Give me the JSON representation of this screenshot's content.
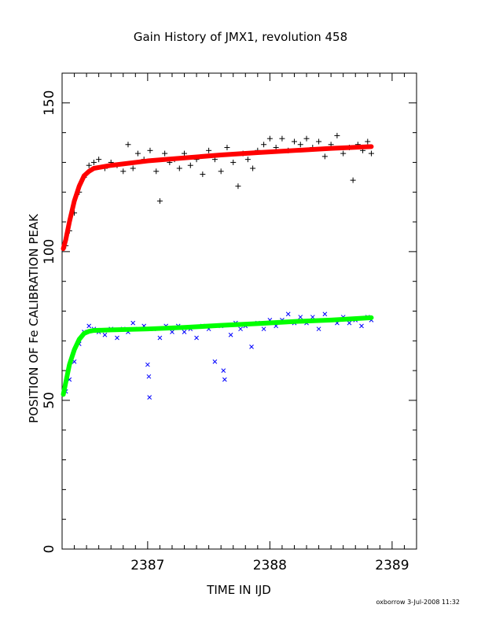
{
  "chart_data": {
    "type": "scatter",
    "title": "Gain History of JMX1, revolution 458",
    "xlabel": "TIME IN IJD",
    "ylabel": "POSITION OF Fe CALIBRATION PEAK",
    "xlim": [
      2386.3,
      2389.2
    ],
    "ylim": [
      0,
      160
    ],
    "x_ticks": [
      "2387",
      "2388",
      "2389"
    ],
    "y_ticks": [
      "0",
      "50",
      "100",
      "150"
    ],
    "grid": false,
    "legend": "none",
    "series": [
      {
        "marker": "+",
        "color": "#000000",
        "x_range": [
          2386.33,
          2388.83
        ],
        "points": [
          [
            2386.33,
            102
          ],
          [
            2386.36,
            107
          ],
          [
            2386.4,
            113
          ],
          [
            2386.44,
            120
          ],
          [
            2386.48,
            125
          ],
          [
            2386.52,
            129
          ],
          [
            2386.56,
            130
          ],
          [
            2386.6,
            131
          ],
          [
            2386.65,
            128
          ],
          [
            2386.7,
            130
          ],
          [
            2386.75,
            129
          ],
          [
            2386.8,
            127
          ],
          [
            2386.84,
            136
          ],
          [
            2386.88,
            128
          ],
          [
            2386.92,
            133
          ],
          [
            2386.97,
            131
          ],
          [
            2387.02,
            134
          ],
          [
            2387.07,
            127
          ],
          [
            2387.1,
            117
          ],
          [
            2387.14,
            133
          ],
          [
            2387.18,
            130
          ],
          [
            2387.22,
            131
          ],
          [
            2387.26,
            128
          ],
          [
            2387.3,
            133
          ],
          [
            2387.35,
            129
          ],
          [
            2387.4,
            131
          ],
          [
            2387.45,
            126
          ],
          [
            2387.5,
            134
          ],
          [
            2387.55,
            131
          ],
          [
            2387.6,
            127
          ],
          [
            2387.65,
            135
          ],
          [
            2387.7,
            130
          ],
          [
            2387.74,
            122
          ],
          [
            2387.78,
            133
          ],
          [
            2387.82,
            131
          ],
          [
            2387.86,
            128
          ],
          [
            2387.9,
            134
          ],
          [
            2387.95,
            136
          ],
          [
            2388.0,
            138
          ],
          [
            2388.05,
            135
          ],
          [
            2388.1,
            138
          ],
          [
            2388.15,
            134
          ],
          [
            2388.2,
            137
          ],
          [
            2388.25,
            136
          ],
          [
            2388.3,
            138
          ],
          [
            2388.35,
            135
          ],
          [
            2388.4,
            137
          ],
          [
            2388.45,
            132
          ],
          [
            2388.5,
            136
          ],
          [
            2388.55,
            139
          ],
          [
            2388.6,
            133
          ],
          [
            2388.65,
            135
          ],
          [
            2388.68,
            124
          ],
          [
            2388.72,
            136
          ],
          [
            2388.76,
            134
          ],
          [
            2388.8,
            137
          ],
          [
            2388.83,
            133
          ]
        ]
      },
      {
        "marker": "x",
        "color": "#0000ff",
        "x_range": [
          2386.33,
          2388.83
        ],
        "points": [
          [
            2386.33,
            53
          ],
          [
            2386.36,
            57
          ],
          [
            2386.4,
            63
          ],
          [
            2386.44,
            69
          ],
          [
            2386.48,
            73
          ],
          [
            2386.52,
            75
          ],
          [
            2386.56,
            74
          ],
          [
            2386.6,
            73
          ],
          [
            2386.65,
            72
          ],
          [
            2386.7,
            74
          ],
          [
            2386.75,
            71
          ],
          [
            2386.8,
            74
          ],
          [
            2386.84,
            73
          ],
          [
            2386.88,
            76
          ],
          [
            2386.92,
            74
          ],
          [
            2386.97,
            75
          ],
          [
            2387.0,
            62
          ],
          [
            2387.01,
            58
          ],
          [
            2387.015,
            51
          ],
          [
            2387.05,
            74
          ],
          [
            2387.1,
            71
          ],
          [
            2387.15,
            75
          ],
          [
            2387.2,
            73
          ],
          [
            2387.25,
            75
          ],
          [
            2387.3,
            73
          ],
          [
            2387.35,
            74
          ],
          [
            2387.4,
            71
          ],
          [
            2387.45,
            75
          ],
          [
            2387.5,
            74
          ],
          [
            2387.55,
            63
          ],
          [
            2387.6,
            75
          ],
          [
            2387.62,
            60
          ],
          [
            2387.63,
            57
          ],
          [
            2387.68,
            72
          ],
          [
            2387.72,
            76
          ],
          [
            2387.76,
            74
          ],
          [
            2387.8,
            75
          ],
          [
            2387.85,
            68
          ],
          [
            2387.9,
            76
          ],
          [
            2387.95,
            74
          ],
          [
            2388.0,
            77
          ],
          [
            2388.05,
            75
          ],
          [
            2388.1,
            77
          ],
          [
            2388.15,
            79
          ],
          [
            2388.2,
            76
          ],
          [
            2388.25,
            78
          ],
          [
            2388.3,
            76
          ],
          [
            2388.35,
            78
          ],
          [
            2388.4,
            74
          ],
          [
            2388.45,
            79
          ],
          [
            2388.5,
            77
          ],
          [
            2388.55,
            76
          ],
          [
            2388.6,
            78
          ],
          [
            2388.65,
            76
          ],
          [
            2388.7,
            77
          ],
          [
            2388.75,
            75
          ],
          [
            2388.8,
            78
          ],
          [
            2388.83,
            77
          ]
        ]
      }
    ],
    "fits": [
      {
        "color": "#ff0000",
        "points": [
          [
            2386.31,
            101
          ],
          [
            2386.33,
            104
          ],
          [
            2386.36,
            110
          ],
          [
            2386.4,
            117
          ],
          [
            2386.44,
            122
          ],
          [
            2386.48,
            125.5
          ],
          [
            2386.52,
            127
          ],
          [
            2386.56,
            128
          ],
          [
            2386.7,
            129
          ],
          [
            2387.0,
            130.5
          ],
          [
            2387.3,
            131.5
          ],
          [
            2387.6,
            132.5
          ],
          [
            2387.9,
            133.3
          ],
          [
            2388.2,
            134
          ],
          [
            2388.5,
            134.7
          ],
          [
            2388.83,
            135.3
          ]
        ]
      },
      {
        "color": "#00ff00",
        "points": [
          [
            2386.31,
            52
          ],
          [
            2386.33,
            56
          ],
          [
            2386.36,
            62
          ],
          [
            2386.4,
            67
          ],
          [
            2386.44,
            70.5
          ],
          [
            2386.48,
            72.5
          ],
          [
            2386.52,
            73.2
          ],
          [
            2386.56,
            73.5
          ],
          [
            2386.7,
            73.7
          ],
          [
            2387.0,
            74
          ],
          [
            2387.3,
            74.5
          ],
          [
            2387.6,
            75.2
          ],
          [
            2387.9,
            75.8
          ],
          [
            2388.2,
            76.5
          ],
          [
            2388.5,
            77
          ],
          [
            2388.83,
            77.8
          ]
        ]
      }
    ]
  },
  "footer": "oxborrow  3-Jul-2008 11:32"
}
